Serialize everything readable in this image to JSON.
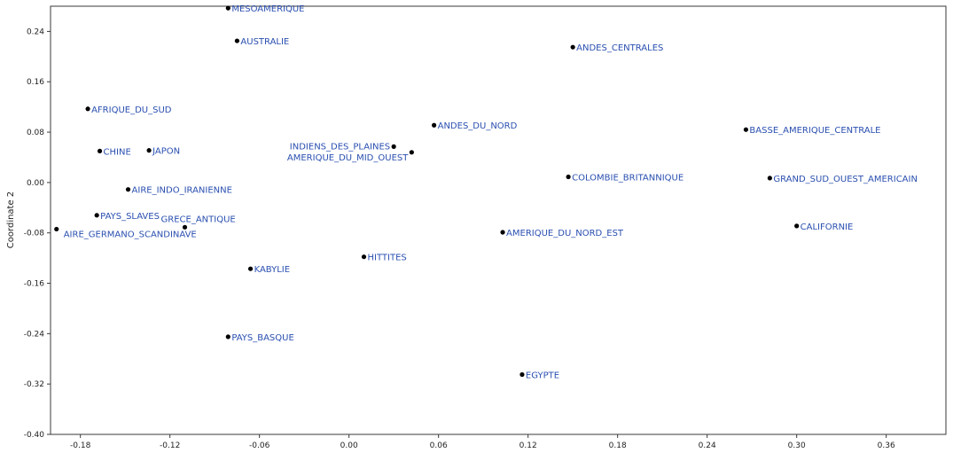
{
  "chart_data": {
    "type": "scatter",
    "title": "",
    "xlabel": "",
    "ylabel": "Coordinate 2",
    "xlim": [
      -0.2,
      0.4
    ],
    "ylim": [
      -0.4,
      0.28
    ],
    "grid": false,
    "x_ticks": [
      -0.18,
      -0.12,
      -0.06,
      0.0,
      0.06,
      0.12,
      0.18,
      0.24,
      0.3,
      0.36
    ],
    "y_ticks": [
      0.24,
      0.16,
      0.08,
      0.0,
      -0.08,
      -0.16,
      -0.24,
      -0.32,
      -0.4
    ],
    "x_tick_labels": [
      "-0.18",
      "-0.12",
      "-0.06",
      "0.00",
      "0.06",
      "0.12",
      "0.18",
      "0.24",
      "0.30",
      "0.36"
    ],
    "y_tick_labels": [
      "0.24",
      "0.16",
      "0.08",
      "0.00",
      "-0.08",
      "-0.16",
      "-0.24",
      "-0.32",
      "-0.40"
    ],
    "marker_color": "#000000",
    "label_color": "#2a4fb0",
    "points": [
      {
        "label": "MESOAMERIQUE",
        "x": -0.081,
        "y": 0.277
      },
      {
        "label": "AUSTRALIE",
        "x": -0.075,
        "y": 0.225
      },
      {
        "label": "ANDES_CENTRALES",
        "x": 0.15,
        "y": 0.215
      },
      {
        "label": "AFRIQUE_DU_SUD",
        "x": -0.175,
        "y": 0.117
      },
      {
        "label": "CHINE",
        "x": -0.167,
        "y": 0.05
      },
      {
        "label": "JAPON",
        "x": -0.134,
        "y": 0.051
      },
      {
        "label": "INDIENS_DES_PLAINES",
        "x": 0.03,
        "y": 0.057
      },
      {
        "label": "AMERIQUE_DU_MID_OUEST",
        "x": 0.042,
        "y": 0.048
      },
      {
        "label": "ANDES_DU_NORD",
        "x": 0.057,
        "y": 0.091
      },
      {
        "label": "BASSE_AMERIQUE_CENTRALE",
        "x": 0.266,
        "y": 0.084
      },
      {
        "label": "COLOMBIE_BRITANNIQUE",
        "x": 0.147,
        "y": 0.009
      },
      {
        "label": "GRAND_SUD_OUEST_AMERICAIN",
        "x": 0.282,
        "y": 0.007
      },
      {
        "label": "AIRE_INDO_IRANIENNE",
        "x": -0.148,
        "y": -0.011
      },
      {
        "label": "PAYS_SLAVES",
        "x": -0.169,
        "y": -0.052
      },
      {
        "label": "GRECE_ANTIQUE",
        "x": -0.11,
        "y": -0.071
      },
      {
        "label": "AIRE_GERMANO_SCANDINAVE",
        "x": -0.196,
        "y": -0.074
      },
      {
        "label": "CALIFORNIE",
        "x": 0.3,
        "y": -0.069
      },
      {
        "label": "AMERIQUE_DU_NORD_EST",
        "x": 0.103,
        "y": -0.079
      },
      {
        "label": "HITTITES",
        "x": 0.01,
        "y": -0.118
      },
      {
        "label": "KABYLIE",
        "x": -0.066,
        "y": -0.137
      },
      {
        "label": "PAYS_BASQUE",
        "x": -0.081,
        "y": -0.245
      },
      {
        "label": "EGYPTE",
        "x": 0.116,
        "y": -0.305
      }
    ]
  }
}
